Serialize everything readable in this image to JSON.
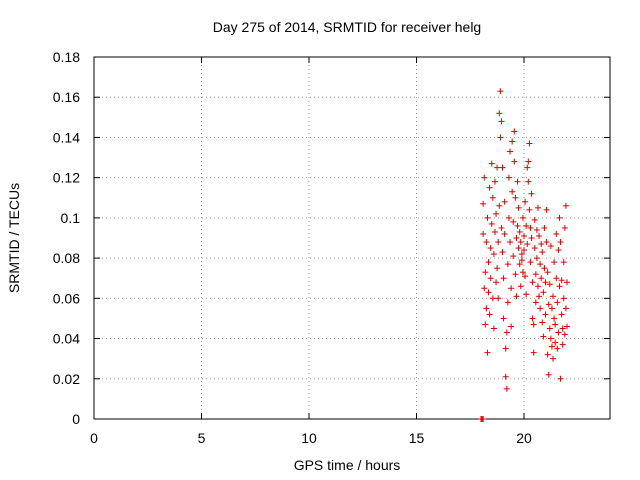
{
  "chart_data": {
    "type": "scatter",
    "title": "Day 275 of 2014, SRMTID for receiver helg",
    "xlabel": "GPS time / hours",
    "ylabel": "SRMTID / TECUs",
    "xlim": [
      0,
      24
    ],
    "ylim": [
      0,
      0.18
    ],
    "x_ticks": [
      "0",
      "5",
      "10",
      "15",
      "20"
    ],
    "y_ticks": [
      "0",
      "0.02",
      "0.04",
      "0.06",
      "0.08",
      "0.1",
      "0.12",
      "0.14",
      "0.16",
      "0.18"
    ],
    "grid": true,
    "marker": "+",
    "color": "#e00000",
    "series": [
      {
        "name": "SRMTID",
        "points": [
          [
            18.0,
            0.0
          ],
          [
            18.05,
            0.0
          ],
          [
            18.1,
            0.0
          ],
          [
            18.1,
            0.107
          ],
          [
            18.1,
            0.092
          ],
          [
            18.15,
            0.12
          ],
          [
            18.15,
            0.065
          ],
          [
            18.2,
            0.073
          ],
          [
            18.2,
            0.047
          ],
          [
            18.25,
            0.088
          ],
          [
            18.25,
            0.055
          ],
          [
            18.3,
            0.033
          ],
          [
            18.3,
            0.1
          ],
          [
            18.35,
            0.078
          ],
          [
            18.35,
            0.063
          ],
          [
            18.4,
            0.115
          ],
          [
            18.4,
            0.052
          ],
          [
            18.45,
            0.085
          ],
          [
            18.45,
            0.07
          ],
          [
            18.5,
            0.127
          ],
          [
            18.5,
            0.097
          ],
          [
            18.55,
            0.06
          ],
          [
            18.55,
            0.11
          ],
          [
            18.6,
            0.082
          ],
          [
            18.6,
            0.045
          ],
          [
            18.65,
            0.118
          ],
          [
            18.65,
            0.093
          ],
          [
            18.7,
            0.068
          ],
          [
            18.7,
            0.102
          ],
          [
            18.75,
            0.125
          ],
          [
            18.75,
            0.075
          ],
          [
            18.8,
            0.088
          ],
          [
            18.8,
            0.06
          ],
          [
            18.85,
            0.152
          ],
          [
            18.85,
            0.106
          ],
          [
            18.9,
            0.163
          ],
          [
            18.9,
            0.14
          ],
          [
            18.95,
            0.148
          ],
          [
            18.95,
            0.095
          ],
          [
            19.0,
            0.083
          ],
          [
            19.0,
            0.125
          ],
          [
            19.05,
            0.07
          ],
          [
            19.05,
            0.05
          ],
          [
            19.1,
            0.108
          ],
          [
            19.1,
            0.092
          ],
          [
            19.15,
            0.035
          ],
          [
            19.15,
            0.021
          ],
          [
            19.2,
            0.015
          ],
          [
            19.2,
            0.043
          ],
          [
            19.25,
            0.058
          ],
          [
            19.25,
            0.077
          ],
          [
            19.3,
            0.1
          ],
          [
            19.3,
            0.12
          ],
          [
            19.35,
            0.133
          ],
          [
            19.35,
            0.088
          ],
          [
            19.4,
            0.065
          ],
          [
            19.4,
            0.046
          ],
          [
            19.45,
            0.138
          ],
          [
            19.45,
            0.113
          ],
          [
            19.5,
            0.098
          ],
          [
            19.5,
            0.081
          ],
          [
            19.55,
            0.143
          ],
          [
            19.55,
            0.128
          ],
          [
            19.6,
            0.11
          ],
          [
            19.6,
            0.072
          ],
          [
            19.65,
            0.09
          ],
          [
            19.65,
            0.061
          ],
          [
            19.7,
            0.118
          ],
          [
            19.7,
            0.096
          ],
          [
            19.75,
            0.085
          ],
          [
            19.75,
            0.105
          ],
          [
            19.8,
            0.077
          ],
          [
            19.8,
            0.093
          ],
          [
            19.85,
            0.088
          ],
          [
            19.85,
            0.066
          ],
          [
            19.9,
            0.082
          ],
          [
            19.9,
            0.079
          ],
          [
            19.95,
            0.1
          ],
          [
            19.95,
            0.073
          ],
          [
            20.0,
            0.091
          ],
          [
            20.0,
            0.084
          ],
          [
            20.05,
            0.071
          ],
          [
            20.05,
            0.108
          ],
          [
            20.1,
            0.096
          ],
          [
            20.1,
            0.062
          ],
          [
            20.15,
            0.125
          ],
          [
            20.15,
            0.087
          ],
          [
            20.2,
            0.118
          ],
          [
            20.2,
            0.128
          ],
          [
            20.25,
            0.137
          ],
          [
            20.25,
            0.104
          ],
          [
            20.3,
            0.095
          ],
          [
            20.3,
            0.078
          ],
          [
            20.35,
            0.112
          ],
          [
            20.35,
            0.09
          ],
          [
            20.4,
            0.068
          ],
          [
            20.4,
            0.05
          ],
          [
            20.45,
            0.047
          ],
          [
            20.45,
            0.033
          ],
          [
            20.5,
            0.085
          ],
          [
            20.5,
            0.099
          ],
          [
            20.55,
            0.072
          ],
          [
            20.55,
            0.058
          ],
          [
            20.6,
            0.094
          ],
          [
            20.6,
            0.08
          ],
          [
            20.65,
            0.066
          ],
          [
            20.65,
            0.105
          ],
          [
            20.7,
            0.091
          ],
          [
            20.7,
            0.061
          ],
          [
            20.75,
            0.077
          ],
          [
            20.75,
            0.055
          ],
          [
            20.8,
            0.087
          ],
          [
            20.8,
            0.07
          ],
          [
            20.85,
            0.083
          ],
          [
            20.85,
            0.048
          ],
          [
            20.9,
            0.063
          ],
          [
            20.9,
            0.041
          ],
          [
            20.95,
            0.095
          ],
          [
            20.95,
            0.075
          ],
          [
            21.0,
            0.068
          ],
          [
            21.0,
            0.052
          ],
          [
            21.05,
            0.104
          ],
          [
            21.05,
            0.088
          ],
          [
            21.1,
            0.073
          ],
          [
            21.1,
            0.032
          ],
          [
            21.15,
            0.022
          ],
          [
            21.15,
            0.057
          ],
          [
            21.2,
            0.045
          ],
          [
            21.2,
            0.067
          ],
          [
            21.25,
            0.086
          ],
          [
            21.25,
            0.04
          ],
          [
            21.3,
            0.055
          ],
          [
            21.3,
            0.036
          ],
          [
            21.35,
            0.03
          ],
          [
            21.35,
            0.061
          ],
          [
            21.4,
            0.05
          ],
          [
            21.4,
            0.078
          ],
          [
            21.45,
            0.047
          ],
          [
            21.45,
            0.038
          ],
          [
            21.5,
            0.092
          ],
          [
            21.5,
            0.07
          ],
          [
            21.55,
            0.035
          ],
          [
            21.55,
            0.058
          ],
          [
            21.6,
            0.043
          ],
          [
            21.6,
            0.084
          ],
          [
            21.65,
            0.066
          ],
          [
            21.65,
            0.1
          ],
          [
            21.7,
            0.088
          ],
          [
            21.7,
            0.02
          ],
          [
            21.75,
            0.052
          ],
          [
            21.75,
            0.069
          ],
          [
            21.8,
            0.045
          ],
          [
            21.8,
            0.037
          ],
          [
            21.85,
            0.078
          ],
          [
            21.85,
            0.06
          ],
          [
            21.9,
            0.095
          ],
          [
            21.9,
            0.042
          ],
          [
            21.95,
            0.106
          ],
          [
            21.95,
            0.055
          ],
          [
            22.0,
            0.068
          ],
          [
            22.0,
            0.046
          ]
        ]
      }
    ]
  }
}
